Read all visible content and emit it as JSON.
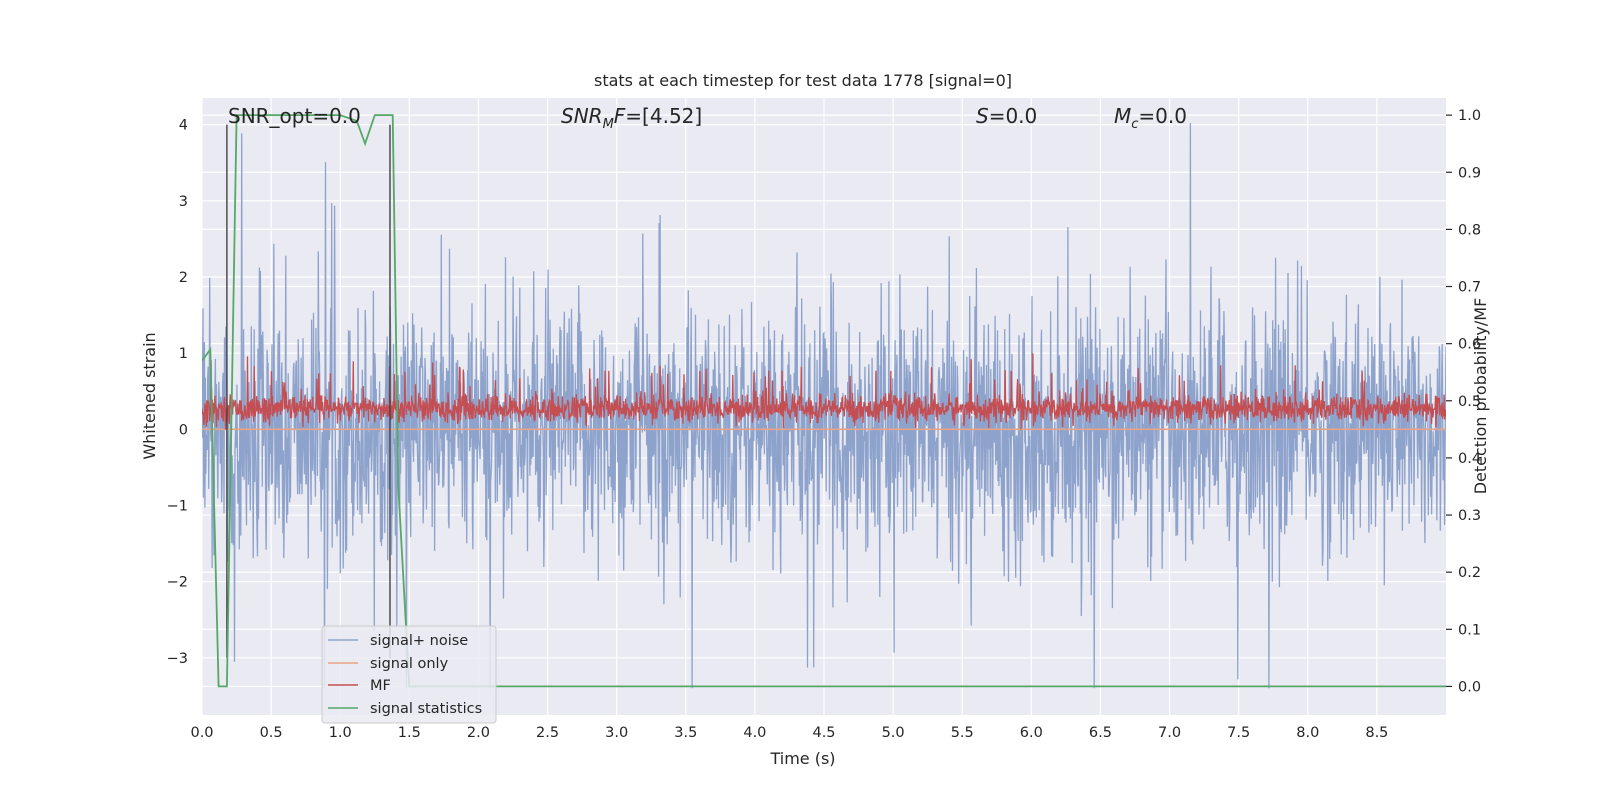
{
  "chart_data": {
    "type": "line",
    "title": "stats at each timestep for test data 1778 [signal=0]",
    "xlabel": "Time (s)",
    "ylabel": "Whitened strain",
    "y2label": "Detection probability/MF",
    "xlim": [
      0.0,
      9.0
    ],
    "ylim": [
      -3.75,
      4.35
    ],
    "y2lim": [
      -0.05,
      1.03
    ],
    "x_ticks": [
      "0.0",
      "0.5",
      "1.0",
      "1.5",
      "2.0",
      "2.5",
      "3.0",
      "3.5",
      "4.0",
      "4.5",
      "5.0",
      "5.5",
      "6.0",
      "6.5",
      "7.0",
      "7.5",
      "8.0",
      "8.5"
    ],
    "y_ticks": [
      "−3",
      "−2",
      "−1",
      "0",
      "1",
      "2",
      "3",
      "4"
    ],
    "y2_ticks": [
      "0.0",
      "0.1",
      "0.2",
      "0.3",
      "0.4",
      "0.5",
      "0.6",
      "0.7",
      "0.8",
      "0.9",
      "1.0"
    ],
    "grid": true,
    "legend_position": "lower-left",
    "annotations": {
      "snr_opt": "SNR_opt=0.0",
      "snr_mf_base": "SNR",
      "snr_mf_sub": "M",
      "snr_mf_rest": "F=[4.52]",
      "s_label": "S",
      "s_rest": "=0.0",
      "mc_label": "M",
      "mc_sub": "c",
      "mc_rest": "=0.0"
    },
    "series": [
      {
        "name": "signal+ noise",
        "color": "#8ea3cc",
        "axis": "left",
        "style": "dense-noise",
        "x_range": [
          0.0,
          9.0
        ],
        "typical_envelope": [
          -1.2,
          1.4
        ],
        "max_value": 4.02,
        "min_value": -3.4
      },
      {
        "name": "signal only",
        "color": "#e8a386",
        "axis": "left",
        "x": [
          0.0,
          9.0
        ],
        "values": [
          0.0,
          0.0
        ]
      },
      {
        "name": "MF",
        "color": "#c44e52",
        "axis": "left",
        "style": "dense-noise",
        "x_range": [
          0.0,
          9.0
        ],
        "baseline": 0.0,
        "typical_high": 0.45,
        "max_value": 1.0
      },
      {
        "name": "signal statistics",
        "color": "#55a868",
        "axis": "right",
        "x": [
          0.0,
          0.06,
          0.12,
          0.18,
          0.25,
          0.32,
          1.0,
          1.12,
          1.18,
          1.25,
          1.38,
          1.42,
          1.5,
          9.0
        ],
        "values": [
          0.57,
          0.59,
          0.0,
          0.0,
          1.0,
          1.0,
          1.0,
          0.99,
          0.95,
          1.0,
          1.0,
          0.35,
          0.0,
          0.0
        ]
      }
    ],
    "vertical_markers": [
      {
        "x": 0.18,
        "y_from": -3.0,
        "y_to": 4.0,
        "color": "#444444"
      },
      {
        "x": 1.36,
        "y_from": -3.0,
        "y_to": 4.0,
        "color": "#444444"
      }
    ]
  },
  "legend": {
    "items": [
      {
        "label": "signal+ noise",
        "color": "#8ea3cc"
      },
      {
        "label": "signal only",
        "color": "#e8a386"
      },
      {
        "label": "MF",
        "color": "#c44e52"
      },
      {
        "label": "signal statistics",
        "color": "#55a868"
      }
    ]
  },
  "colors": {
    "plot_background": "#eaeaf2",
    "grid": "#ffffff"
  }
}
